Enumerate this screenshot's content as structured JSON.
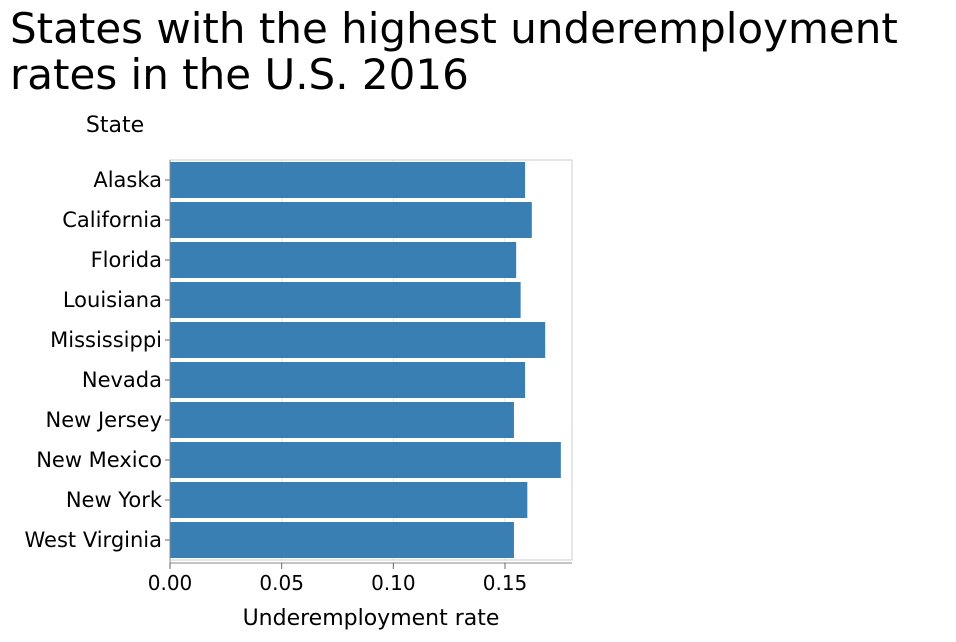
{
  "chart_data": {
    "type": "bar",
    "orientation": "horizontal",
    "title": "States with the highest underemployment rates in the U.S. 2016",
    "ylabel": "State",
    "xlabel": "Underemployment rate",
    "categories": [
      "Alaska",
      "California",
      "Florida",
      "Louisiana",
      "Mississippi",
      "Nevada",
      "New Jersey",
      "New Mexico",
      "New York",
      "West Virginia"
    ],
    "values": [
      0.159,
      0.162,
      0.155,
      0.157,
      0.168,
      0.159,
      0.154,
      0.175,
      0.16,
      0.154
    ],
    "xlim": [
      0,
      0.18
    ],
    "xticks": [
      0.0,
      0.05,
      0.1,
      0.15
    ],
    "xtick_labels": [
      "0.00",
      "0.05",
      "0.10",
      "0.15"
    ],
    "grid": true,
    "bar_color": "#3a7fb4"
  }
}
